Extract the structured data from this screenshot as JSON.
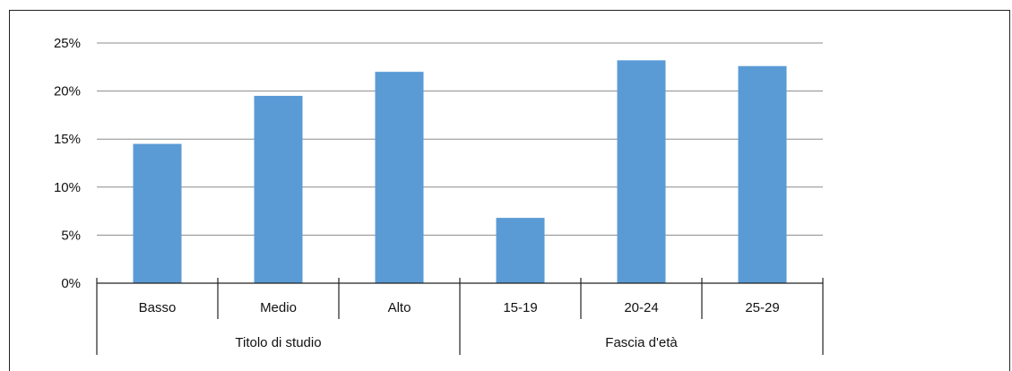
{
  "chart_data": {
    "type": "bar",
    "y_ticks": [
      "0%",
      "5%",
      "10%",
      "15%",
      "20%",
      "25%"
    ],
    "ylim": [
      0,
      25
    ],
    "grid": true,
    "color": "#5b9bd5",
    "groups": [
      {
        "label": "Titolo di studio",
        "categories": [
          "Basso",
          "Medio",
          "Alto"
        ],
        "values": [
          14.5,
          19.5,
          22.0
        ]
      },
      {
        "label": "Fascia d'età",
        "categories": [
          "15-19",
          "20-24",
          "25-29"
        ],
        "values": [
          6.8,
          23.2,
          22.6
        ]
      }
    ]
  }
}
